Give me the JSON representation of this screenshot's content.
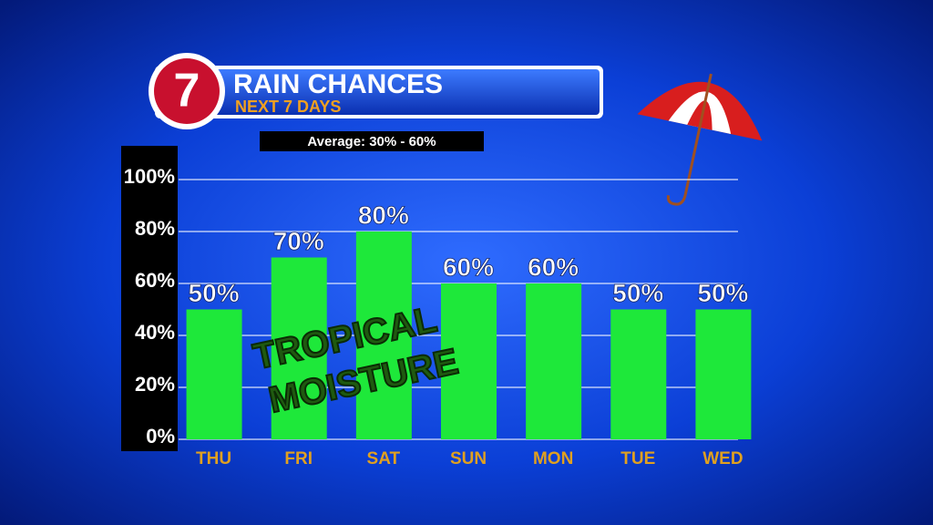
{
  "chart_data": {
    "type": "bar",
    "logo": "7",
    "title": "RAIN CHANCES",
    "subtitle": "NEXT 7 DAYS",
    "note": "Average: 30% - 60%",
    "overlay": [
      "TROPICAL",
      "MOISTURE"
    ],
    "categories": [
      "THU",
      "FRI",
      "SAT",
      "SUN",
      "MON",
      "TUE",
      "WED"
    ],
    "values": [
      50,
      70,
      80,
      60,
      60,
      50,
      50
    ],
    "value_labels": [
      "50%",
      "70%",
      "80%",
      "60%",
      "60%",
      "50%",
      "50%"
    ],
    "color": "#1ee83a",
    "ylim": [
      0,
      100
    ],
    "yticks": [
      {
        "value": 0,
        "label": "0%"
      },
      {
        "value": 20,
        "label": "20%"
      },
      {
        "value": 40,
        "label": "40%"
      },
      {
        "value": 60,
        "label": "60%"
      },
      {
        "value": 80,
        "label": "80%"
      },
      {
        "value": 100,
        "label": "100%"
      }
    ],
    "grid": true
  }
}
